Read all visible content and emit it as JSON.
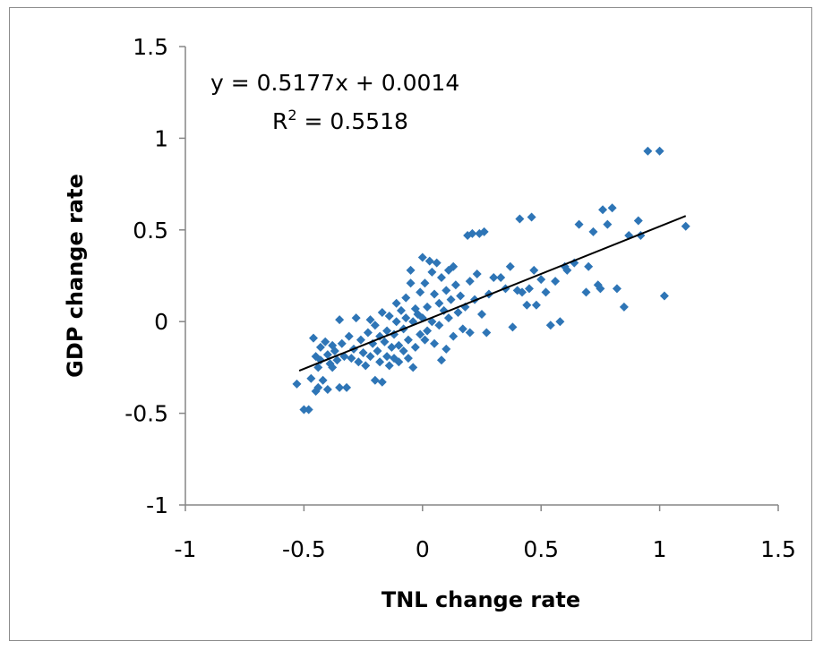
{
  "chart_data": {
    "type": "scatter",
    "xlabel": "TNL change rate",
    "ylabel": "GDP change rate",
    "xlim": [
      -1,
      1.5
    ],
    "ylim": [
      -1,
      1.5
    ],
    "x_ticks": [
      "-1",
      "-0.5",
      "0",
      "0.5",
      "1",
      "1.5"
    ],
    "y_ticks": [
      "1.5",
      "1",
      "0.5",
      "0",
      "-0.5",
      "-1"
    ],
    "grid": false,
    "legend": "none",
    "marker": "diamond",
    "marker_color": "#2e75b6",
    "trendline": {
      "slope": 0.5177,
      "intercept": 0.0014,
      "x_range": [
        -0.52,
        1.11
      ],
      "color": "#000000",
      "equation": "y = 0.5177x + 0.0014",
      "r2_label": "R",
      "r2_sup": "2",
      "r2_value": " = 0.5518"
    },
    "series": [
      {
        "points": [
          [
            -0.53,
            -0.34
          ],
          [
            -0.5,
            -0.48
          ],
          [
            -0.48,
            -0.48
          ],
          [
            -0.47,
            -0.31
          ],
          [
            -0.46,
            -0.09
          ],
          [
            -0.45,
            -0.19
          ],
          [
            -0.45,
            -0.38
          ],
          [
            -0.44,
            -0.36
          ],
          [
            -0.44,
            -0.25
          ],
          [
            -0.43,
            -0.14
          ],
          [
            -0.43,
            -0.21
          ],
          [
            -0.42,
            -0.32
          ],
          [
            -0.41,
            -0.11
          ],
          [
            -0.4,
            -0.18
          ],
          [
            -0.4,
            -0.37
          ],
          [
            -0.39,
            -0.23
          ],
          [
            -0.38,
            -0.13
          ],
          [
            -0.38,
            -0.25
          ],
          [
            -0.37,
            -0.16
          ],
          [
            -0.36,
            -0.21
          ],
          [
            -0.35,
            0.01
          ],
          [
            -0.35,
            -0.36
          ],
          [
            -0.34,
            -0.12
          ],
          [
            -0.33,
            -0.19
          ],
          [
            -0.32,
            -0.36
          ],
          [
            -0.31,
            -0.08
          ],
          [
            -0.3,
            -0.2
          ],
          [
            -0.29,
            -0.15
          ],
          [
            -0.28,
            0.02
          ],
          [
            -0.27,
            -0.22
          ],
          [
            -0.26,
            -0.1
          ],
          [
            -0.25,
            -0.17
          ],
          [
            -0.24,
            -0.24
          ],
          [
            -0.23,
            -0.06
          ],
          [
            -0.22,
            0.01
          ],
          [
            -0.22,
            -0.19
          ],
          [
            -0.21,
            -0.12
          ],
          [
            -0.2,
            -0.02
          ],
          [
            -0.2,
            -0.32
          ],
          [
            -0.19,
            -0.16
          ],
          [
            -0.18,
            -0.08
          ],
          [
            -0.18,
            -0.22
          ],
          [
            -0.17,
            0.05
          ],
          [
            -0.17,
            -0.33
          ],
          [
            -0.16,
            -0.11
          ],
          [
            -0.15,
            -0.05
          ],
          [
            -0.15,
            -0.19
          ],
          [
            -0.14,
            0.03
          ],
          [
            -0.14,
            -0.24
          ],
          [
            -0.13,
            -0.14
          ],
          [
            -0.12,
            -0.07
          ],
          [
            -0.12,
            -0.2
          ],
          [
            -0.11,
            0.0
          ],
          [
            -0.11,
            0.1
          ],
          [
            -0.1,
            -0.13
          ],
          [
            -0.1,
            -0.22
          ],
          [
            -0.09,
            0.06
          ],
          [
            -0.08,
            -0.04
          ],
          [
            -0.08,
            -0.16
          ],
          [
            -0.07,
            0.02
          ],
          [
            -0.07,
            0.13
          ],
          [
            -0.06,
            -0.1
          ],
          [
            -0.06,
            -0.2
          ],
          [
            -0.05,
            0.21
          ],
          [
            -0.05,
            0.28
          ],
          [
            -0.04,
            0.0
          ],
          [
            -0.04,
            -0.25
          ],
          [
            -0.03,
            0.07
          ],
          [
            -0.03,
            -0.14
          ],
          [
            -0.02,
            0.04
          ],
          [
            -0.01,
            0.16
          ],
          [
            -0.01,
            -0.07
          ],
          [
            0.0,
            0.35
          ],
          [
            0.0,
            0.02
          ],
          [
            0.01,
            -0.1
          ],
          [
            0.01,
            0.21
          ],
          [
            0.02,
            0.08
          ],
          [
            0.02,
            -0.05
          ],
          [
            0.03,
            0.33
          ],
          [
            0.04,
            0.27
          ],
          [
            0.04,
            0.0
          ],
          [
            0.05,
            0.15
          ],
          [
            0.05,
            -0.12
          ],
          [
            0.06,
            0.32
          ],
          [
            0.07,
            0.1
          ],
          [
            0.07,
            -0.02
          ],
          [
            0.08,
            0.24
          ],
          [
            0.08,
            -0.21
          ],
          [
            0.09,
            0.06
          ],
          [
            0.1,
            0.17
          ],
          [
            0.1,
            -0.15
          ],
          [
            0.11,
            0.28
          ],
          [
            0.11,
            0.02
          ],
          [
            0.12,
            0.12
          ],
          [
            0.13,
            -0.08
          ],
          [
            0.13,
            0.3
          ],
          [
            0.14,
            0.2
          ],
          [
            0.15,
            0.05
          ],
          [
            0.16,
            0.14
          ],
          [
            0.17,
            -0.04
          ],
          [
            0.18,
            0.08
          ],
          [
            0.19,
            0.47
          ],
          [
            0.2,
            0.22
          ],
          [
            0.2,
            -0.06
          ],
          [
            0.21,
            0.48
          ],
          [
            0.22,
            0.12
          ],
          [
            0.23,
            0.26
          ],
          [
            0.24,
            0.48
          ],
          [
            0.25,
            0.04
          ],
          [
            0.26,
            0.49
          ],
          [
            0.27,
            -0.06
          ],
          [
            0.28,
            0.15
          ],
          [
            0.3,
            0.24
          ],
          [
            0.33,
            0.24
          ],
          [
            0.35,
            0.18
          ],
          [
            0.37,
            0.3
          ],
          [
            0.38,
            -0.03
          ],
          [
            0.4,
            0.17
          ],
          [
            0.41,
            0.56
          ],
          [
            0.42,
            0.16
          ],
          [
            0.44,
            0.09
          ],
          [
            0.45,
            0.18
          ],
          [
            0.46,
            0.57
          ],
          [
            0.47,
            0.28
          ],
          [
            0.48,
            0.09
          ],
          [
            0.5,
            0.23
          ],
          [
            0.52,
            0.16
          ],
          [
            0.54,
            -0.02
          ],
          [
            0.56,
            0.22
          ],
          [
            0.58,
            0.0
          ],
          [
            0.6,
            0.3
          ],
          [
            0.61,
            0.28
          ],
          [
            0.64,
            0.32
          ],
          [
            0.66,
            0.53
          ],
          [
            0.69,
            0.16
          ],
          [
            0.7,
            0.3
          ],
          [
            0.72,
            0.49
          ],
          [
            0.74,
            0.2
          ],
          [
            0.75,
            0.18
          ],
          [
            0.76,
            0.61
          ],
          [
            0.78,
            0.53
          ],
          [
            0.8,
            0.62
          ],
          [
            0.82,
            0.18
          ],
          [
            0.85,
            0.08
          ],
          [
            0.87,
            0.47
          ],
          [
            0.91,
            0.55
          ],
          [
            0.92,
            0.47
          ],
          [
            0.95,
            0.93
          ],
          [
            1.0,
            0.93
          ],
          [
            1.02,
            0.14
          ],
          [
            1.11,
            0.52
          ]
        ]
      }
    ]
  }
}
